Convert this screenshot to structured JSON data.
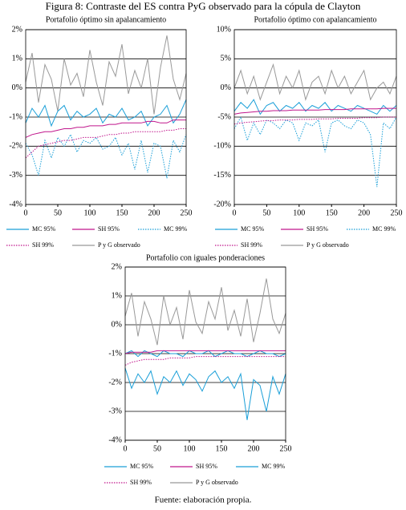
{
  "figure_title": "Figura 8: Contraste del ES contra PyG observado para la cópula de Clayton",
  "source": "Fuente: elaboración propia.",
  "chart_data": [
    {
      "type": "line",
      "title": "Portafolio óptimo sin apalancamiento",
      "x": [
        0,
        10,
        20,
        30,
        40,
        50,
        60,
        70,
        80,
        90,
        100,
        110,
        120,
        130,
        140,
        150,
        160,
        170,
        180,
        190,
        200,
        210,
        220,
        230,
        240,
        250
      ],
      "xlim": [
        0,
        250
      ],
      "xticks": [
        0,
        50,
        100,
        150,
        200,
        250
      ],
      "ylim": [
        -4,
        2
      ],
      "yticks": [
        {
          "value": -4,
          "label": "-4%"
        },
        {
          "value": -3,
          "label": "-3%"
        },
        {
          "value": -2,
          "label": "-2%"
        },
        {
          "value": -1,
          "label": "-1%"
        },
        {
          "value": 0,
          "label": "0%"
        },
        {
          "value": 1,
          "label": "1%"
        },
        {
          "value": 2,
          "label": "2%"
        }
      ],
      "grid": true,
      "series": [
        {
          "name": "MC 95%",
          "color": "#1a9fd8",
          "dash": "solid",
          "values": [
            -1.2,
            -0.7,
            -1.0,
            -0.6,
            -1.3,
            -0.8,
            -0.6,
            -1.1,
            -0.8,
            -1.0,
            -0.9,
            -0.7,
            -1.2,
            -0.9,
            -1.0,
            -0.7,
            -1.1,
            -1.0,
            -0.8,
            -1.3,
            -1.0,
            -0.9,
            -0.6,
            -1.2,
            -0.9,
            -0.4
          ]
        },
        {
          "name": "SH 95%",
          "color": "#c0168c",
          "dash": "solid",
          "values": [
            -1.7,
            -1.6,
            -1.55,
            -1.5,
            -1.5,
            -1.45,
            -1.4,
            -1.4,
            -1.35,
            -1.35,
            -1.3,
            -1.3,
            -1.3,
            -1.25,
            -1.25,
            -1.2,
            -1.2,
            -1.2,
            -1.2,
            -1.15,
            -1.15,
            -1.2,
            -1.2,
            -1.1,
            -1.1,
            -1.1
          ]
        },
        {
          "name": "MC 99%",
          "color": "#1a9fd8",
          "dash": "dotted",
          "values": [
            -1.9,
            -2.3,
            -3.0,
            -1.8,
            -2.4,
            -1.7,
            -2.0,
            -1.6,
            -2.2,
            -1.8,
            -1.9,
            -1.7,
            -2.1,
            -2.0,
            -1.7,
            -2.3,
            -1.9,
            -2.8,
            -1.8,
            -2.9,
            -1.9,
            -2.0,
            -3.1,
            -1.8,
            -2.2,
            -1.6
          ]
        },
        {
          "name": "SH 99%",
          "color": "#c0168c",
          "dash": "dotted",
          "values": [
            -2.4,
            -2.2,
            -2.0,
            -1.95,
            -1.9,
            -1.85,
            -1.8,
            -1.8,
            -1.75,
            -1.7,
            -1.7,
            -1.7,
            -1.65,
            -1.6,
            -1.6,
            -1.55,
            -1.55,
            -1.5,
            -1.5,
            -1.5,
            -1.5,
            -1.5,
            -1.45,
            -1.45,
            -1.4,
            -1.4
          ]
        },
        {
          "name": "P y G observado",
          "color": "#999999",
          "dash": "solid",
          "values": [
            0.2,
            1.2,
            -0.5,
            0.8,
            0.3,
            -0.8,
            1.0,
            0.1,
            0.5,
            -0.3,
            1.3,
            0.2,
            -0.6,
            0.9,
            0.4,
            1.5,
            -0.2,
            0.6,
            0.0,
            1.0,
            -0.9,
            0.7,
            1.8,
            0.3,
            -0.4,
            0.5
          ]
        }
      ]
    },
    {
      "type": "line",
      "title": "Portafolio óptimo con apalancamiento",
      "x": [
        0,
        10,
        20,
        30,
        40,
        50,
        60,
        70,
        80,
        90,
        100,
        110,
        120,
        130,
        140,
        150,
        160,
        170,
        180,
        190,
        200,
        210,
        220,
        230,
        240,
        250
      ],
      "xlim": [
        0,
        250
      ],
      "xticks": [
        0,
        50,
        100,
        150,
        200,
        250
      ],
      "ylim": [
        -20,
        10
      ],
      "yticks": [
        {
          "value": -20,
          "label": "-20%"
        },
        {
          "value": -15,
          "label": "-15%"
        },
        {
          "value": -10,
          "label": "-10%"
        },
        {
          "value": -5,
          "label": "-5%"
        },
        {
          "value": 0,
          "label": "0%"
        },
        {
          "value": 5,
          "label": "5%"
        },
        {
          "value": 10,
          "label": "10%"
        }
      ],
      "grid": true,
      "series": [
        {
          "name": "MC 95%",
          "color": "#1a9fd8",
          "dash": "solid",
          "values": [
            -4,
            -2.5,
            -3.5,
            -2,
            -4.5,
            -3,
            -2.5,
            -4,
            -3,
            -3.5,
            -2.5,
            -4,
            -3,
            -3.5,
            -2.5,
            -4,
            -3,
            -3.5,
            -4,
            -3,
            -3.5,
            -4,
            -4.5,
            -3,
            -4,
            -3
          ]
        },
        {
          "name": "SH 95%",
          "color": "#c0168c",
          "dash": "solid",
          "values": [
            -4.5,
            -4.3,
            -4.2,
            -4.1,
            -4.0,
            -4.0,
            -3.9,
            -3.9,
            -3.9,
            -3.8,
            -3.8,
            -3.8,
            -3.8,
            -3.8,
            -3.7,
            -3.7,
            -3.7,
            -3.7,
            -3.6,
            -3.6,
            -3.6,
            -3.6,
            -3.6,
            -3.5,
            -3.5,
            -3.5
          ]
        },
        {
          "name": "MC 99%",
          "color": "#1a9fd8",
          "dash": "dotted",
          "values": [
            -7,
            -5,
            -9,
            -6,
            -8,
            -5.5,
            -6,
            -7,
            -5.5,
            -6,
            -9,
            -6,
            -6.5,
            -5.5,
            -11,
            -6,
            -5.5,
            -6.5,
            -7,
            -5.5,
            -6,
            -8,
            -17,
            -6,
            -7,
            -5
          ]
        },
        {
          "name": "SH 99%",
          "color": "#c0168c",
          "dash": "dotted",
          "values": [
            -6.2,
            -6.0,
            -5.9,
            -5.8,
            -5.7,
            -5.6,
            -5.6,
            -5.5,
            -5.5,
            -5.5,
            -5.4,
            -5.4,
            -5.4,
            -5.3,
            -5.3,
            -5.3,
            -5.2,
            -5.2,
            -5.2,
            -5.2,
            -5.1,
            -5.1,
            -5.1,
            -5.0,
            -5.0,
            -5.0
          ]
        },
        {
          "name": "P y G observado",
          "color": "#999999",
          "dash": "solid",
          "values": [
            0,
            3,
            -1,
            2,
            -2,
            1,
            4,
            -1,
            2,
            0,
            3,
            -2,
            1,
            2,
            -1,
            3,
            0,
            2,
            -1,
            1,
            3,
            -2,
            0,
            1,
            -1,
            2
          ]
        }
      ]
    },
    {
      "type": "line",
      "title": "Portafolio con iguales ponderaciones",
      "x": [
        0,
        10,
        20,
        30,
        40,
        50,
        60,
        70,
        80,
        90,
        100,
        110,
        120,
        130,
        140,
        150,
        160,
        170,
        180,
        190,
        200,
        210,
        220,
        230,
        240,
        250
      ],
      "xlim": [
        0,
        250
      ],
      "xticks": [
        0,
        50,
        100,
        150,
        200,
        250
      ],
      "ylim": [
        -4,
        2
      ],
      "yticks": [
        {
          "value": -4,
          "label": "-4%"
        },
        {
          "value": -3,
          "label": "-3%"
        },
        {
          "value": -2,
          "label": "-2%"
        },
        {
          "value": -1,
          "label": "-1%"
        },
        {
          "value": 0,
          "label": "0%"
        },
        {
          "value": 1,
          "label": "1%"
        },
        {
          "value": 2,
          "label": "2%"
        }
      ],
      "grid": true,
      "series": [
        {
          "name": "MC 95%",
          "color": "#1a9fd8",
          "dash": "solid",
          "values": [
            -1.0,
            -0.9,
            -1.1,
            -0.9,
            -1.0,
            -1.1,
            -0.9,
            -1.0,
            -1.0,
            -1.1,
            -0.9,
            -1.0,
            -1.0,
            -0.9,
            -1.1,
            -1.0,
            -0.9,
            -1.0,
            -1.0,
            -1.1,
            -1.0,
            -0.9,
            -1.0,
            -1.0,
            -1.1,
            -1.0
          ]
        },
        {
          "name": "SH 95%",
          "color": "#c0168c",
          "dash": "solid",
          "values": [
            -1.0,
            -0.95,
            -0.95,
            -0.95,
            -0.95,
            -0.9,
            -0.9,
            -0.9,
            -0.9,
            -0.9,
            -0.9,
            -0.9,
            -0.9,
            -0.9,
            -0.9,
            -0.9,
            -0.9,
            -0.9,
            -0.9,
            -0.9,
            -0.9,
            -0.9,
            -0.9,
            -0.9,
            -0.9,
            -0.9
          ]
        },
        {
          "name": "MC 99%",
          "color": "#1a9fd8",
          "dash": "solid",
          "values": [
            -1.5,
            -2.2,
            -1.7,
            -2.0,
            -1.6,
            -2.4,
            -1.8,
            -2.0,
            -1.6,
            -2.1,
            -1.7,
            -1.9,
            -2.3,
            -1.8,
            -1.6,
            -2.0,
            -1.8,
            -2.2,
            -1.7,
            -3.3,
            -1.9,
            -2.1,
            -3.0,
            -1.8,
            -2.4,
            -1.7
          ]
        },
        {
          "name": "SH 99%",
          "color": "#c0168c",
          "dash": "dotted",
          "values": [
            -1.4,
            -1.3,
            -1.25,
            -1.2,
            -1.2,
            -1.2,
            -1.2,
            -1.15,
            -1.15,
            -1.15,
            -1.15,
            -1.1,
            -1.1,
            -1.1,
            -1.1,
            -1.1,
            -1.1,
            -1.1,
            -1.1,
            -1.1,
            -1.1,
            -1.1,
            -1.1,
            -1.1,
            -1.1,
            -1.1
          ]
        },
        {
          "name": "P y G observado",
          "color": "#999999",
          "dash": "solid",
          "values": [
            0.3,
            1.1,
            -0.4,
            0.8,
            0.2,
            -0.7,
            1.0,
            0.0,
            0.6,
            -0.5,
            1.2,
            0.1,
            -0.3,
            0.8,
            0.2,
            1.3,
            -0.2,
            0.5,
            -0.4,
            0.9,
            -0.6,
            0.4,
            1.6,
            0.2,
            -0.3,
            0.4
          ]
        }
      ]
    }
  ]
}
